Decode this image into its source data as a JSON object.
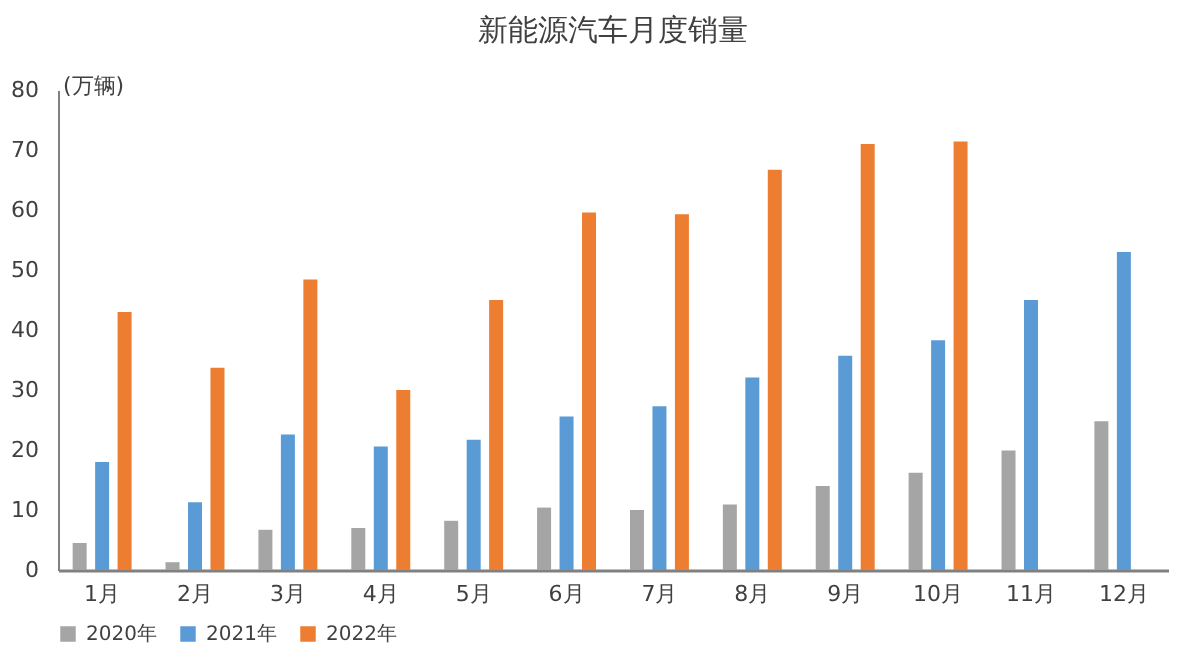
{
  "chart_data": {
    "type": "bar",
    "title": "新能源汽车月度销量",
    "ylabel": "(万辆)",
    "categories": [
      "1月",
      "2月",
      "3月",
      "4月",
      "5月",
      "6月",
      "7月",
      "8月",
      "9月",
      "10月",
      "11月",
      "12月"
    ],
    "series": [
      {
        "name": "2020年",
        "color": "#a5a5a5",
        "values": [
          4.5,
          1.3,
          6.7,
          7,
          8.2,
          10.4,
          10,
          10.9,
          14,
          16.2,
          19.9,
          24.8
        ]
      },
      {
        "name": "2021年",
        "color": "#5b9bd5",
        "values": [
          18,
          11.3,
          22.6,
          20.6,
          21.7,
          25.6,
          27.3,
          32.1,
          35.7,
          38.3,
          45,
          53
        ]
      },
      {
        "name": "2022年",
        "color": "#ed7d31",
        "values": [
          43,
          33.7,
          48.4,
          30,
          45,
          59.6,
          59.3,
          66.7,
          71,
          71.4,
          null,
          null
        ]
      }
    ],
    "ylim": [
      0,
      80
    ],
    "yticks": [
      0,
      10,
      20,
      30,
      40,
      50,
      60,
      70,
      80
    ],
    "grid": false,
    "legend": "bottom"
  }
}
